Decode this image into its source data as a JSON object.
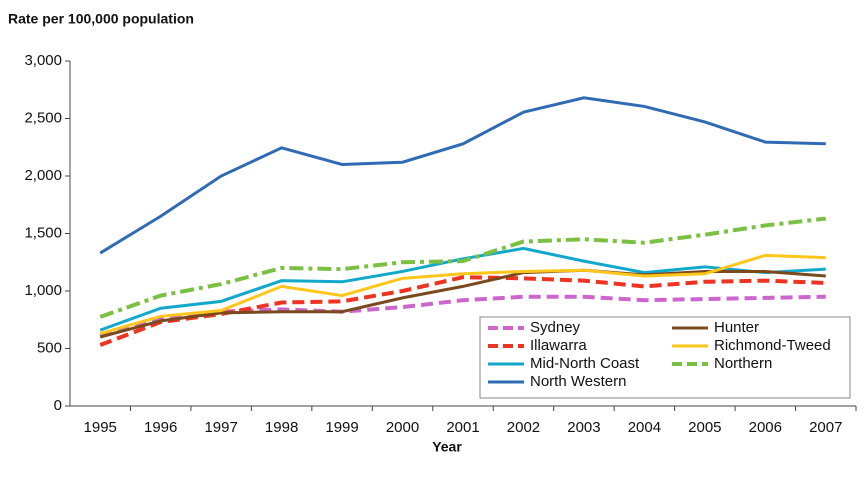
{
  "chart_data": {
    "type": "line",
    "title": "Rate per 100,000 population",
    "x_label": "Year",
    "categories": [
      "1995",
      "1996",
      "1997",
      "1998",
      "1999",
      "2000",
      "2001",
      "2002",
      "2003",
      "2004",
      "2005",
      "2006",
      "2007"
    ],
    "ylim": [
      0,
      3000
    ],
    "yticks": [
      0,
      500,
      {
        "value": 1000,
        "label": "1,000"
      },
      {
        "value": 1500,
        "label": "1,500"
      },
      {
        "value": 2000,
        "label": "2,000"
      },
      {
        "value": 2500,
        "label": "2,500"
      },
      {
        "value": 3000,
        "label": "3,000"
      }
    ],
    "grid": false,
    "legend": "bottom-right",
    "series": [
      {
        "name": "Sydney",
        "color": "#cc66cc",
        "line_style": "dashed",
        "values": [
          610,
          760,
          820,
          840,
          820,
          860,
          920,
          950,
          950,
          920,
          930,
          940,
          950
        ]
      },
      {
        "name": "Illawarra",
        "color": "#ee3322",
        "line_style": "dashed",
        "values": [
          530,
          730,
          800,
          900,
          910,
          1000,
          1120,
          1110,
          1090,
          1040,
          1080,
          1090,
          1070
        ]
      },
      {
        "name": "Mid-North Coast",
        "color": "#11a8cc",
        "line_style": "solid",
        "values": [
          660,
          850,
          910,
          1090,
          1080,
          1170,
          1280,
          1370,
          1260,
          1160,
          1210,
          1160,
          1190
        ]
      },
      {
        "name": "North Western",
        "color": "#2f6bb5",
        "line_style": "solid",
        "values": [
          1330,
          1650,
          2000,
          2245,
          2100,
          2120,
          2280,
          2555,
          2680,
          2605,
          2470,
          2295,
          2280
        ]
      },
      {
        "name": "Hunter",
        "color": "#7a4a1e",
        "line_style": "solid",
        "values": [
          600,
          740,
          810,
          820,
          820,
          940,
          1040,
          1160,
          1180,
          1140,
          1170,
          1170,
          1130
        ]
      },
      {
        "name": "Richmond-Tweed",
        "color": "#ffc61a",
        "line_style": "solid",
        "values": [
          630,
          780,
          830,
          1040,
          960,
          1110,
          1150,
          1170,
          1180,
          1130,
          1150,
          1310,
          1290
        ]
      },
      {
        "name": "Northern",
        "color": "#7ac143",
        "line_style": "dashdot",
        "values": [
          775,
          960,
          1060,
          1200,
          1190,
          1250,
          1260,
          1430,
          1450,
          1420,
          1490,
          1570,
          1630
        ]
      }
    ]
  }
}
